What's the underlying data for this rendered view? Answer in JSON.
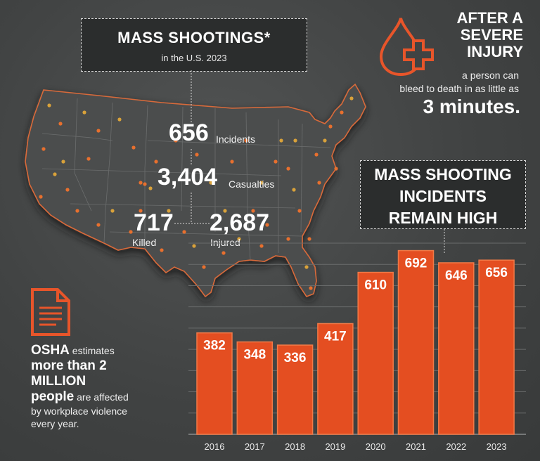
{
  "header": {
    "title": "MASS SHOOTINGS*",
    "subtitle": "in the U.S. 2023"
  },
  "stats": {
    "incidents_value": "656",
    "incidents_label": "Incidents",
    "casualties_value": "3,404",
    "casualties_label": "Casualties",
    "killed_value": "717",
    "killed_label": "Killed",
    "injured_value": "2,687",
    "injured_label": "Injured"
  },
  "injury": {
    "line1": "AFTER A",
    "line2": "SEVERE",
    "line3": "INJURY",
    "body1": "a person can",
    "body2": "bleed to death in as little as",
    "minutes": "3 minutes",
    "period": "."
  },
  "osha": {
    "w1": "OSHA",
    "t1": " estimates",
    "w2": "more than 2",
    "w3": "MILLION",
    "w4": "people",
    "t2": " are affected",
    "t3": "by workplace violence",
    "t4": "every year."
  },
  "colors": {
    "bar": "#e44e21",
    "bar_outline": "#f07a48",
    "accent": "#e8552a",
    "background": "#414343",
    "map_fill": "#4a4c4c",
    "dot": "#e8702e"
  },
  "icons": [
    "blood-drop-plus-icon",
    "document-icon"
  ],
  "chart_data": {
    "type": "bar",
    "title": "MASS SHOOTING INCIDENTS REMAIN HIGH",
    "title_lines": [
      "MASS SHOOTING",
      "INCIDENTS",
      "REMAIN HIGH"
    ],
    "categories": [
      "2016",
      "2017",
      "2018",
      "2019",
      "2020",
      "2021",
      "2022",
      "2023"
    ],
    "values": [
      382,
      348,
      336,
      417,
      610,
      692,
      646,
      656
    ],
    "ylim": [
      0,
      720
    ],
    "grid": true,
    "legend": "none"
  }
}
